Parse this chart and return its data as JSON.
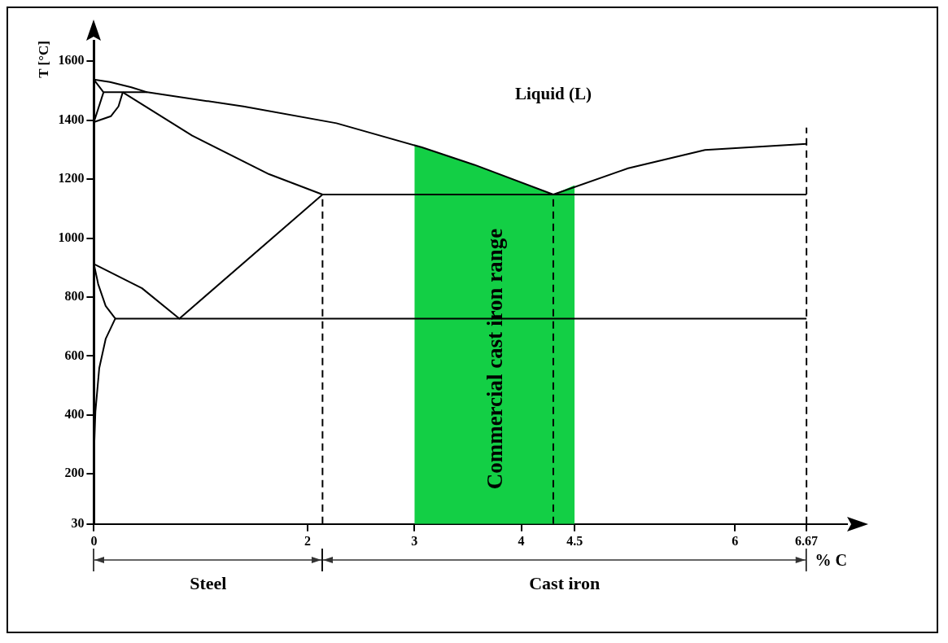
{
  "chart_data": {
    "type": "line",
    "xlabel": "% C",
    "ylabel": "T [°C]",
    "xlim": [
      0,
      7.05
    ],
    "ylim": [
      30,
      1670
    ],
    "xticks": [
      0,
      2,
      3,
      4,
      4.5,
      6,
      6.67
    ],
    "yticks": [
      30,
      200,
      400,
      600,
      800,
      1000,
      1200,
      1400,
      1600
    ],
    "grid": false,
    "legend": false,
    "marker": "none",
    "series": [
      {
        "type": "area",
        "color": "#13cf45",
        "x": [
          3,
          3.56,
          4.3,
          4.5
        ],
        "values": [
          1315,
          1249,
          1148,
          1180
        ]
      },
      {
        "color": "#000000",
        "x": [
          0,
          0.15,
          0.35,
          0.5,
          1.4,
          2.27,
          3.07,
          3.56,
          4.3,
          5.0,
          5.72,
          6.67
        ],
        "values": [
          1538,
          1530,
          1512,
          1495,
          1447,
          1390,
          1308,
          1249,
          1148,
          1237,
          1299,
          1320
        ]
      },
      {
        "color": "#000000",
        "x": [
          0,
          0.09,
          0.5
        ],
        "values": [
          1538,
          1495,
          1495
        ]
      },
      {
        "color": "#000000",
        "x": [
          0,
          0.09
        ],
        "values": [
          1394,
          1495
        ]
      },
      {
        "color": "#000000",
        "x": [
          0,
          0.16,
          0.23,
          0.27
        ],
        "values": [
          1394,
          1414,
          1447,
          1495
        ]
      },
      {
        "color": "#000000",
        "x": [
          0.27,
          0.92,
          1.64,
          2.14,
          6.67
        ],
        "values": [
          1495,
          1348,
          1217,
          1148,
          1148
        ]
      },
      {
        "color": "#000000",
        "x": [
          0,
          0.45,
          0.8,
          2.14
        ],
        "values": [
          912,
          830,
          727,
          1148
        ]
      },
      {
        "color": "#000000",
        "x": [
          0,
          0.04,
          0.11,
          0.2,
          0.11,
          0.05,
          0.014,
          0
        ],
        "values": [
          912,
          844,
          770,
          727,
          658,
          559,
          411,
          262
        ]
      },
      {
        "color": "#000000",
        "x": [
          0.2,
          6.67
        ],
        "values": [
          727,
          727
        ]
      },
      {
        "color": "#000000",
        "line_style": "dashed",
        "x": [
          2.14,
          2.14
        ],
        "values": [
          30,
          1148
        ]
      },
      {
        "color": "#000000",
        "line_style": "dashed",
        "x": [
          4.3,
          4.3
        ],
        "values": [
          30,
          1148
        ]
      },
      {
        "color": "#000000",
        "line_style": "dashed",
        "x": [
          6.67,
          6.67
        ],
        "values": [
          30,
          1375
        ]
      }
    ],
    "annotations": [
      "Liquid (L)",
      "Commercial cast iron range",
      "Steel",
      "Cast iron"
    ]
  }
}
